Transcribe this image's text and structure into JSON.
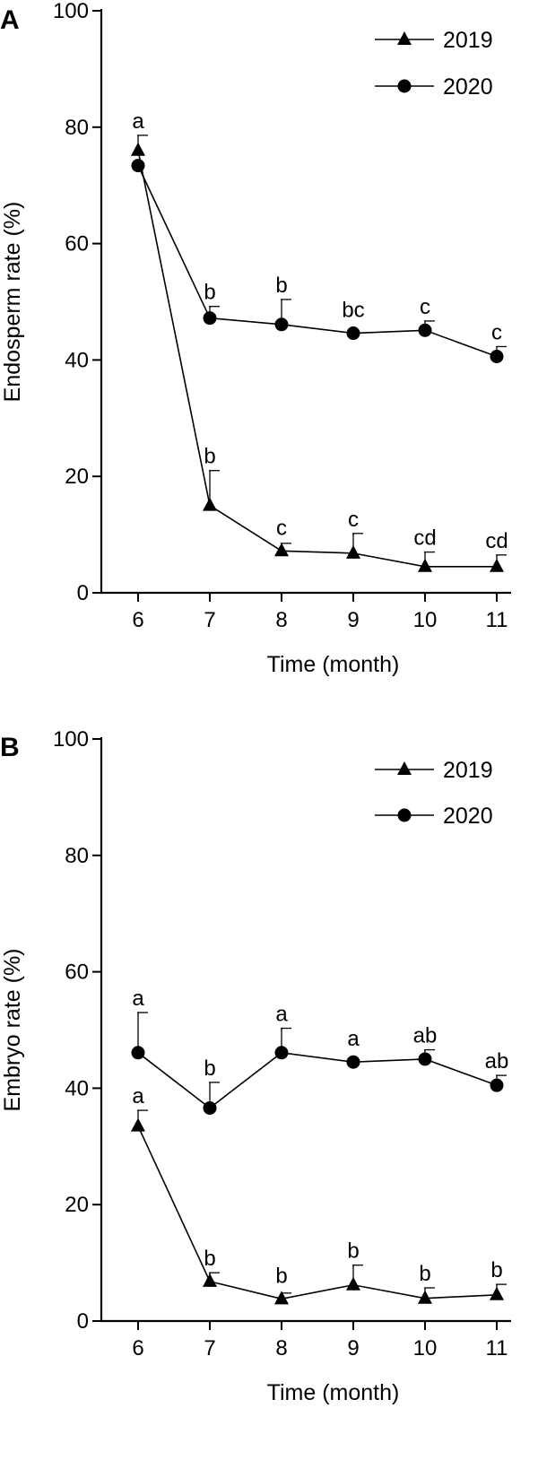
{
  "chart_data": [
    {
      "panel": "A",
      "type": "line",
      "title": "",
      "xlabel": "Time (month)",
      "ylabel": "Endosperm rate (%)",
      "x": [
        6,
        7,
        8,
        9,
        10,
        11
      ],
      "xlim": [
        5.5,
        11.2
      ],
      "ylim": [
        0,
        100
      ],
      "yticks": [
        0,
        20,
        40,
        60,
        80,
        100
      ],
      "legend": "top-right",
      "series": [
        {
          "name": "2019",
          "marker": "triangle",
          "values": [
            76,
            15,
            7.2,
            6.8,
            4.5,
            4.5
          ],
          "errors": [
            2.6,
            6,
            1.3,
            3.4,
            2.5,
            2
          ],
          "labels": [
            "a",
            "b",
            "c",
            "c",
            "cd",
            "cd"
          ]
        },
        {
          "name": "2020",
          "marker": "circle",
          "values": [
            73.4,
            47.2,
            46.1,
            44.6,
            45.1,
            40.6
          ],
          "errors": [
            0,
            2,
            4.3,
            0,
            1.6,
            1.7
          ],
          "labels": [
            "",
            "b",
            "b",
            "bc",
            "c",
            "c"
          ]
        }
      ]
    },
    {
      "panel": "B",
      "type": "line",
      "title": "",
      "xlabel": "Time (month)",
      "ylabel": "Embryo rate (%)",
      "x": [
        6,
        7,
        8,
        9,
        10,
        11
      ],
      "xlim": [
        5.5,
        11.2
      ],
      "ylim": [
        0,
        100
      ],
      "yticks": [
        0,
        20,
        40,
        60,
        80,
        100
      ],
      "legend": "top-right",
      "series": [
        {
          "name": "2019",
          "marker": "triangle",
          "values": [
            33.5,
            6.8,
            3.8,
            6.2,
            3.9,
            4.5
          ],
          "errors": [
            2.7,
            1.5,
            1,
            3.4,
            1.8,
            1.8
          ],
          "labels": [
            "a",
            "b",
            "b",
            "b",
            "b",
            "b"
          ]
        },
        {
          "name": "2020",
          "marker": "circle",
          "values": [
            46.1,
            36.6,
            46.1,
            44.5,
            45,
            40.5
          ],
          "errors": [
            6.9,
            4.4,
            4.2,
            0,
            1.6,
            1.7
          ],
          "labels": [
            "a",
            "b",
            "a",
            "a",
            "ab",
            "ab"
          ]
        }
      ]
    }
  ]
}
